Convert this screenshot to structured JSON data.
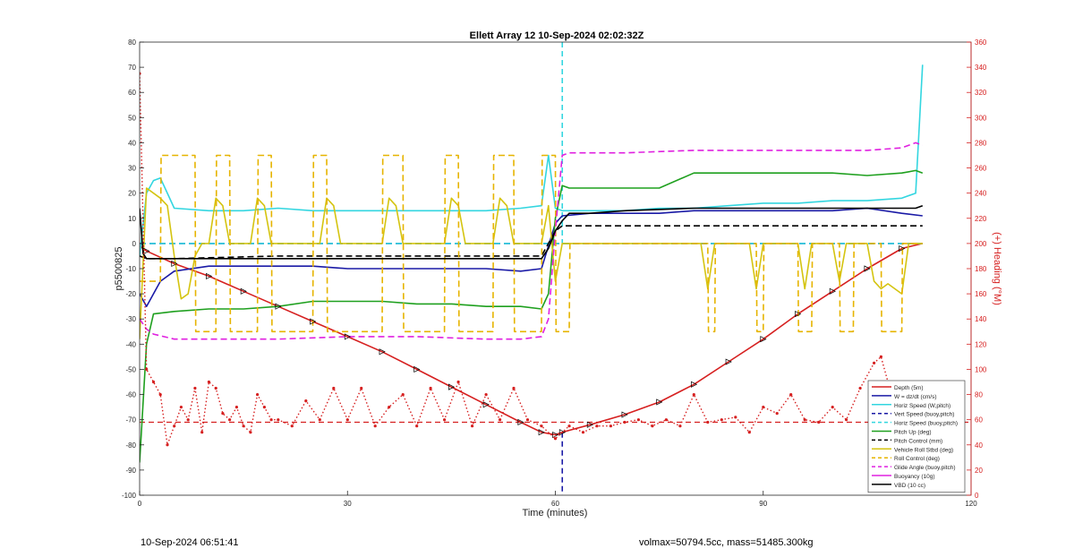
{
  "chart_data": {
    "type": "line",
    "title": "Ellett Array 12 10-Sep-2024 02:02:32Z",
    "xlabel": "Time (minutes)",
    "ylabel_left": "p5500825",
    "ylabel_right": "(+) Heading (°M)",
    "xlim": [
      0,
      120
    ],
    "ylim_left": [
      -100,
      80
    ],
    "ylim_right": [
      0,
      360
    ],
    "xticks": [
      0,
      30,
      60,
      90,
      120
    ],
    "yticks_left": [
      80,
      70,
      60,
      50,
      40,
      30,
      20,
      10,
      0,
      -10,
      -20,
      -30,
      -40,
      -50,
      -60,
      -70,
      -80,
      -90,
      -100
    ],
    "yticks_right": [
      360,
      340,
      320,
      300,
      280,
      260,
      240,
      220,
      200,
      180,
      160,
      140,
      120,
      100,
      80,
      60,
      40,
      20,
      0
    ],
    "grid": false,
    "legend_position": "bottom-right",
    "colors": {
      "depth": "#d62020",
      "w": "#1a1aa6",
      "horiz": "#33d6e0",
      "vert": "#1a1aa6",
      "hdg_speed": "#33d6e0",
      "pitch": "#1fa01f",
      "roll": "#d4c410",
      "roll_ctrl": "#e6b400",
      "glide": "#e020e0",
      "buoy": "#e020e0",
      "vbd": "#000000",
      "heading": "#d62020",
      "right_axis": "#d62020"
    },
    "series": [
      {
        "name": "Depth (5m)",
        "key": "depth",
        "style": "solid",
        "x": [
          0,
          1,
          5,
          10,
          15,
          20,
          25,
          30,
          35,
          40,
          45,
          50,
          55,
          58,
          60,
          61,
          65,
          70,
          75,
          80,
          85,
          90,
          95,
          100,
          105,
          110,
          113
        ],
        "y": [
          -1,
          -3,
          -8,
          -13,
          -19,
          -25,
          -31,
          -37,
          -43,
          -50,
          -57,
          -64,
          -71,
          -75,
          -76,
          -75,
          -72,
          -68,
          -63,
          -56,
          -47,
          -38,
          -28,
          -19,
          -10,
          -2,
          0
        ]
      },
      {
        "name": "W = dz/dt (cm/s)",
        "key": "w",
        "style": "solid",
        "x": [
          0,
          1,
          3,
          5,
          10,
          15,
          20,
          25,
          30,
          35,
          40,
          45,
          50,
          55,
          58,
          60,
          61,
          65,
          70,
          75,
          80,
          85,
          90,
          95,
          100,
          105,
          110,
          113
        ],
        "y": [
          -20,
          -25,
          -15,
          -11,
          -9,
          -9,
          -9,
          -9,
          -10,
          -10,
          -10,
          -10,
          -10,
          -11,
          -10,
          8,
          11,
          12,
          12,
          12,
          13,
          13,
          13,
          13,
          13,
          14,
          12,
          11
        ]
      },
      {
        "name": "Horiz Speed (W,pitch)",
        "key": "horiz",
        "style": "solid",
        "x": [
          0,
          1,
          2,
          3,
          5,
          10,
          15,
          20,
          25,
          30,
          35,
          40,
          45,
          50,
          55,
          58,
          59,
          60,
          61,
          65,
          70,
          75,
          80,
          85,
          90,
          95,
          100,
          105,
          110,
          112,
          113
        ],
        "y": [
          -5,
          20,
          25,
          26,
          14,
          13,
          13,
          14,
          13,
          13,
          13,
          13,
          13,
          13,
          14,
          15,
          35,
          14,
          13,
          13,
          13,
          14,
          14,
          15,
          16,
          16,
          17,
          17,
          18,
          20,
          71
        ]
      },
      {
        "name": "Vert Speed (buoy,pitch)",
        "key": "vert",
        "style": "dashed",
        "x": [
          0,
          60,
          61,
          113
        ],
        "y": [
          0,
          0,
          0,
          0
        ]
      },
      {
        "name": "Horiz Speed (buoy,pitch)",
        "key": "hdg_speed",
        "style": "dashed",
        "x": [
          0,
          60,
          61,
          113
        ],
        "y": [
          0,
          0,
          0,
          0
        ]
      },
      {
        "name": "Pitch Up (deg)",
        "key": "pitch",
        "style": "solid",
        "x": [
          0,
          1,
          2,
          5,
          10,
          15,
          20,
          25,
          30,
          35,
          40,
          45,
          50,
          55,
          58,
          59,
          60,
          61,
          62,
          65,
          70,
          75,
          80,
          85,
          90,
          95,
          100,
          105,
          110,
          112,
          113
        ],
        "y": [
          -87,
          -40,
          -28,
          -27,
          -26,
          -26,
          -25,
          -23,
          -23,
          -23,
          -24,
          -24,
          -25,
          -25,
          -26,
          -20,
          10,
          23,
          22,
          22,
          22,
          22,
          28,
          28,
          28,
          28,
          28,
          27,
          28,
          29,
          28
        ]
      },
      {
        "name": "Pitch Control (mm)",
        "key": "pitch_ctrl",
        "style": "dashed",
        "x": [
          0,
          1,
          5,
          20,
          40,
          58,
          60,
          61,
          65,
          70,
          80,
          90,
          100,
          110,
          113
        ],
        "y": [
          -5,
          -6,
          -6,
          -5,
          -5,
          -5,
          5,
          7,
          7,
          7,
          7,
          7,
          7,
          7,
          7
        ]
      },
      {
        "name": "Vehicle Roll Stbd (deg)",
        "key": "roll",
        "style": "solid",
        "x": [
          0,
          1,
          2,
          3,
          4,
          5,
          6,
          7,
          8,
          9,
          10,
          11,
          12,
          13,
          16,
          17,
          18,
          19,
          26,
          27,
          28,
          29,
          35,
          36,
          37,
          38,
          44,
          45,
          46,
          47,
          51,
          52,
          53,
          54,
          58,
          59,
          60,
          61,
          62,
          70,
          80,
          81,
          82,
          83,
          88,
          89,
          90,
          95,
          96,
          97,
          98,
          100,
          101,
          102,
          103,
          105,
          106,
          107,
          108,
          110,
          111,
          112,
          113
        ],
        "y": [
          -38,
          22,
          20,
          18,
          15,
          -5,
          -22,
          -20,
          -5,
          0,
          0,
          18,
          15,
          0,
          0,
          18,
          15,
          0,
          0,
          18,
          15,
          0,
          0,
          18,
          15,
          0,
          0,
          18,
          15,
          0,
          0,
          18,
          15,
          0,
          0,
          15,
          -15,
          0,
          0,
          0,
          0,
          0,
          -18,
          0,
          0,
          -18,
          0,
          0,
          -18,
          0,
          0,
          0,
          -15,
          0,
          0,
          0,
          -15,
          -18,
          -16,
          -20,
          0,
          0,
          0
        ]
      },
      {
        "name": "Roll Control (deg)",
        "key": "roll_ctrl",
        "style": "dashed",
        "x": [
          0,
          3,
          3.1,
          8,
          8.1,
          11,
          11.1,
          13,
          13.1,
          17,
          17.1,
          19,
          19.1,
          25,
          25.1,
          27,
          27.1,
          35,
          35.1,
          38,
          38.1,
          44,
          44.1,
          46,
          46.1,
          51,
          51.1,
          54,
          54.1,
          58,
          58.1,
          60,
          60.1,
          62,
          62.1,
          82,
          82.1,
          83,
          83.1,
          89,
          89.1,
          90,
          90.1,
          95,
          95.1,
          97,
          97.1,
          101,
          101.1,
          103,
          103.1,
          107,
          107.1,
          110,
          110.1,
          113
        ],
        "y": [
          -15,
          -15,
          35,
          35,
          -35,
          -35,
          35,
          35,
          -35,
          -35,
          35,
          35,
          -35,
          -35,
          35,
          35,
          -35,
          -35,
          35,
          35,
          -35,
          -35,
          35,
          35,
          -35,
          -35,
          35,
          35,
          -35,
          -35,
          35,
          35,
          -35,
          -35,
          0,
          0,
          -35,
          -35,
          0,
          0,
          -35,
          -35,
          0,
          0,
          -35,
          -35,
          0,
          0,
          -35,
          -35,
          0,
          0,
          -35,
          -35,
          0,
          0
        ]
      },
      {
        "name": "Glide Angle (buoy,pitch)",
        "key": "glide",
        "style": "dashed",
        "x": [
          0,
          1,
          2,
          5,
          10,
          20,
          30,
          40,
          50,
          55,
          58,
          59,
          60,
          61,
          62,
          70,
          80,
          85,
          90,
          95,
          100,
          105,
          110,
          112,
          113
        ],
        "y": [
          -30,
          -34,
          -36,
          -38,
          -38,
          -38,
          -37,
          -37,
          -38,
          -38,
          -37,
          -30,
          5,
          35,
          36,
          36,
          37,
          37,
          37,
          37,
          37,
          37,
          38,
          40,
          39
        ]
      },
      {
        "name": "Buoyancy (10g)",
        "key": "buoy",
        "style": "solid",
        "x": [
          0,
          113
        ],
        "y": [
          null,
          null
        ]
      },
      {
        "name": "VBD (10 cc)",
        "key": "vbd",
        "style": "solid",
        "x": [
          0,
          0.5,
          1,
          2,
          5,
          10,
          20,
          30,
          40,
          50,
          57,
          58,
          59,
          60,
          61,
          62,
          65,
          70,
          80,
          90,
          100,
          110,
          112,
          113
        ],
        "y": [
          14,
          -4,
          -6,
          -6,
          -6,
          -6,
          -6,
          -6,
          -6,
          -6,
          -6,
          -6,
          -2,
          5,
          9,
          12,
          12,
          13,
          14,
          14,
          14,
          14,
          14,
          15
        ]
      }
    ],
    "heading_series": {
      "name": "Heading",
      "axis": "right",
      "reference": 58,
      "x": [
        0,
        1,
        2,
        3,
        4,
        5,
        6,
        7,
        8,
        9,
        10,
        11,
        12,
        13,
        14,
        15,
        16,
        17,
        18,
        19,
        20,
        22,
        24,
        26,
        28,
        30,
        32,
        34,
        36,
        38,
        40,
        42,
        44,
        46,
        48,
        50,
        52,
        54,
        56,
        58,
        60,
        62,
        64,
        66,
        68,
        70,
        72,
        74,
        76,
        78,
        80,
        82,
        84,
        86,
        88,
        90,
        92,
        94,
        96,
        98,
        100,
        102,
        104,
        106,
        107,
        108,
        110,
        112,
        113
      ],
      "y": [
        335,
        100,
        90,
        80,
        40,
        55,
        70,
        60,
        85,
        50,
        90,
        85,
        65,
        60,
        70,
        55,
        50,
        80,
        70,
        60,
        60,
        55,
        75,
        60,
        85,
        60,
        85,
        55,
        70,
        80,
        55,
        85,
        60,
        90,
        55,
        80,
        60,
        85,
        60,
        55,
        45,
        55,
        50,
        55,
        55,
        58,
        60,
        55,
        60,
        55,
        80,
        58,
        60,
        62,
        50,
        70,
        65,
        80,
        60,
        58,
        70,
        60,
        85,
        105,
        110,
        90,
        50,
        60,
        65
      ]
    },
    "annotations": {
      "vertical_lines": [
        {
          "x": 61,
          "color": "#33d6e0",
          "style": "dashed",
          "range": "top-to-zero"
        },
        {
          "x": 61,
          "color": "#1a1aa6",
          "style": "dashed",
          "range": "depth-to-bottom"
        }
      ]
    }
  },
  "footer": {
    "left": "10-Sep-2024 06:51:41",
    "right": "volmax=50794.5cc, mass=51485.300kg"
  }
}
